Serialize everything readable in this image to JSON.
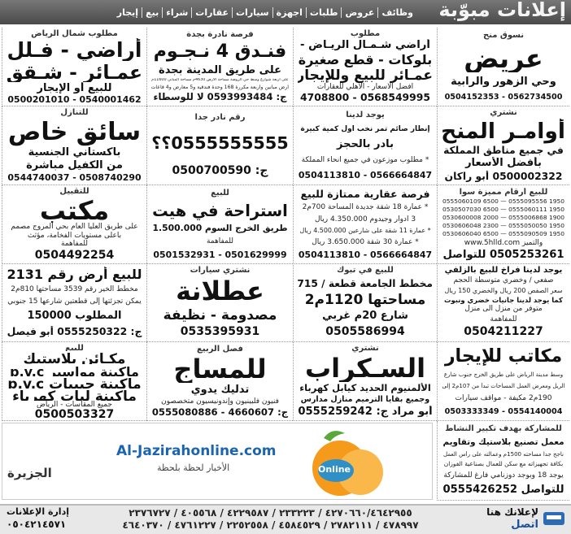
{
  "header": {
    "title": "إعلانات مبوّبة",
    "nav": [
      "وظائف",
      "عروض",
      "طلبات",
      "اجهزة",
      "سيارات",
      "عقارات",
      "شراء",
      "بيع",
      "إيجار"
    ]
  },
  "ads": [
    {
      "lines": [
        "نسوق منح",
        "عريض",
        "وحي الزهور والرابية",
        "0504152353 - 0562734500"
      ]
    },
    {
      "lines": [
        "مطلوب",
        "أراضي شـمـال الريـاض -",
        "بلوكات - قطع صغيرة",
        "عمـائر للبيع وللإيجار",
        "أفضل الأسعار - الأهلي للعقارات",
        "4708800 - 0568549995"
      ]
    },
    {
      "lines": [
        "فرصة نادرة بجدة",
        "فنـدق 4 نـجـوم",
        "على طريق المدينة بجدة",
        "على أربعة شوارع وسط حي الروضة مساحة الأرض 4630م مساحة المباني 11600م",
        "أرض مبانين وأربعة مكررة 168 وحدة فندقية و5 معارض و4 قاعات",
        "ج: 0593993484 لا للوسطاء"
      ]
    },
    {
      "lines": [
        "مطلوب شمال الرياض",
        "أراضي - فـلل",
        "عمـائر - شـقق",
        "للبيع أو الإيجار",
        "0500201010 - 0540001462"
      ]
    },
    {
      "lines": [
        "نشتري",
        "أوامـر المنح",
        "في جميع مناطق المملكة",
        "بأفضل الأسعار",
        "0500002322 أبو راكان"
      ]
    },
    {
      "lines": [
        "يوجد لدينا",
        "إنطار صائم تمر نخب أول كمية كبيرة",
        "بادر بالحجز",
        "* مطلوب موزعون في جميع أنحاء المملكة",
        "0504113810 - 0566664847"
      ]
    },
    {
      "lines": [
        "رقم نادر جداً",
        "0555555555؟؟",
        "ج: 0500700590"
      ]
    },
    {
      "lines": [
        "للتنازل",
        "سائق خاص",
        "باكستاني الجنسية",
        "من الكفيل مباشرة",
        "0544740037 - 0508740290"
      ]
    },
    {
      "lines": [
        "للبيع أرقام مميزة سوا",
        "1950 0555095556 — 6500 0555060109",
        "1950 0555060111 — 6500 0530507030",
        "1900 0555006868 — 2000 0530600008",
        "1950 0555050050 — 2300 0530606048",
        "1950 0555090509 — 6500 0530606040",
        "والتميز www.5hlld.com",
        "0505253261 للتواصل"
      ]
    },
    {
      "lines": [
        "فرصة عقارية ممتازة للبيع",
        "* عمارة 18 شقة جديدة المساحة 700م2",
        "3 أدوار وجيدوم 4.350.000 ريال",
        "* عمارة 11 شقة على شارعين 4.500.000 ريال",
        "* عمارة 30 شقة 3.650.000 ريال",
        "0504113810 - 0566664847"
      ]
    },
    {
      "lines": [
        "للبيع",
        "استراحة في هيت",
        "طريق الخرج السوم 1.500.000",
        "للمفاهمة",
        "0501532931 - 0501629999"
      ]
    },
    {
      "lines": [
        "للتقبيل",
        "مكتب",
        "على طريق العليا العام بحي المروج مصمم",
        "بأعلى مستويات الفخامة، مؤثث",
        "للمفاهمة",
        "0504492254"
      ]
    },
    {
      "lines": [
        "يوجد لدينا فراخ للبيع بالزلفي",
        "صفعي / وخضري متوسطة الحجم",
        "سعر الصفص 200 ريال والخضري 150 ريال",
        "كما يوجد لدينا جانيات خضري ونبوت",
        "متوفر من منزل الى منزل",
        "للمفاهمة",
        "0504211227"
      ]
    },
    {
      "lines": [
        "للبيع في تبوك",
        "مخطط الجامعة قطعة / 715",
        "مساحتها 1120م2",
        "شارع 20م غربي",
        "0505586994"
      ]
    },
    {
      "lines": [
        "نشتري سيارات",
        "عطلانة",
        "مصدومة - نظيفة",
        "0535395931"
      ]
    },
    {
      "lines": [
        "للبيع أرض رقم 2131",
        "مخطط الخير رقم 3539 مساحتها 810م2",
        "يمكن تجزئتها إلى قطعتين شارعها 15 جنوبي",
        "المطلوب 150000",
        "ج: 0555250322 أبو فيصل"
      ]
    },
    {
      "lines": [
        "مكاتب للإيجار",
        "وسط مدينة الرياض على طريق الخرج جنوب شارع",
        "الريل ومعرض العمل المساحات تبدأ من 107م2 إلى",
        "190م2 مكيفة - مواقف سيارات",
        "0503333349 - 0554140004"
      ]
    },
    {
      "lines": [
        "نشتري",
        "السـكراب",
        "الألمنيوم الحديد كيابل كهرباء",
        "وجميع بقايا الترميم منازل مدارس",
        "أبو مراد ج: 0555259242"
      ]
    },
    {
      "lines": [
        "فصل الربيع",
        "للمساج",
        "تدليك يدوي",
        "فنيون فلبينيون وإندونيسيون متخصصون",
        "ج: 4660607 - 0555080886"
      ]
    },
    {
      "lines": [
        "للبيع",
        "مكـائن بلاستيك",
        "ماكينة مواسير p.v.c",
        "ماكينة حبيبات p.v.c",
        "ماكينة ليات كهرباء",
        "جميع المقاسات - الرياض",
        "0500503327"
      ]
    },
    {
      "lines": [
        "للمشاركة بهدف تكبير النشاط",
        "معمل تصنيع بلاستيك وتقاويم",
        "ناجح جدا مساحته 1500م وعمالته على رأس العمل",
        "بكافة تجهيزاته مع سكن للعمال بصناعية الفوزان",
        "يوجد 18 وبوجد دوزنامي فارغ للمشاركة",
        "للتواصل 0555426252"
      ]
    }
  ],
  "banner": {
    "site": "Al-Jazirahonline.com",
    "tagline": "الأخبار لحظة بلحظة",
    "logo": "الجزيرة",
    "badge": "Online"
  },
  "footer": {
    "cta": [
      "لإعلانك هنا",
      "اتصل"
    ],
    "phones": [
      "٤٢٧٠٦٦٠/٤٦٤٢٩٥٥ / ٢٣٣٢٢٣ / ٤٢٢٩٥٨٧ / ٤٠٥٥٦٨ / ٢٣٧٦٧٢٧",
      "٤٧٨٩٩٧ / ٢٧٨٢١١١ / ٤٥٨٤٥٢٩ / ٢٢٥٢٥٥٨ / ٤٧٦١٢٢٧ / ٤٦٤٠٣٧٠"
    ],
    "admin": [
      "إدارة الإعلانات",
      "٠٥٠٤٢١٤٥٧١"
    ]
  }
}
